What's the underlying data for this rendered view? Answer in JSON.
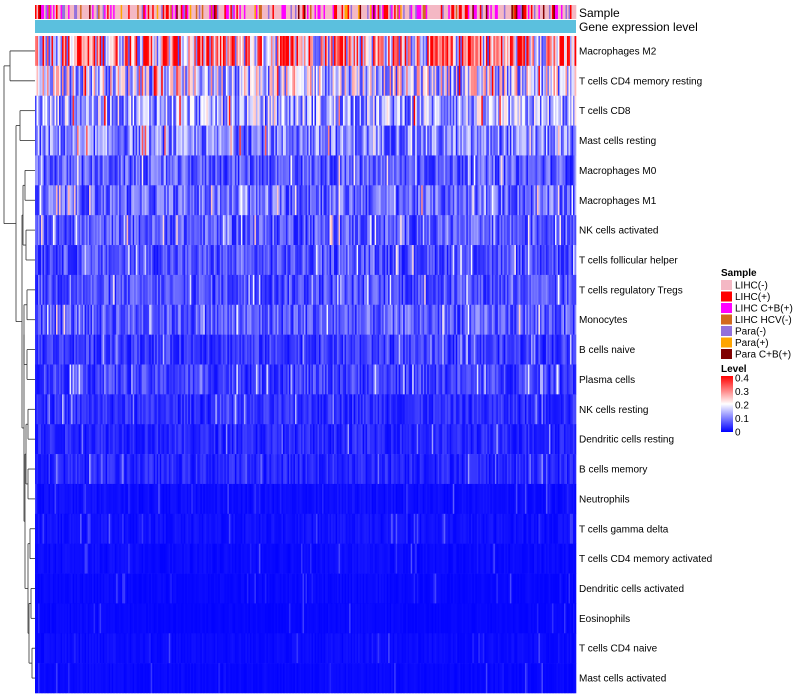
{
  "chart_data": {
    "type": "heatmap",
    "title": "",
    "annotation_labels": [
      "Sample",
      "Gene expression level"
    ],
    "rows": [
      {
        "name": "Macrophages M2",
        "mean": 0.26
      },
      {
        "name": "T cells CD4 memory resting",
        "mean": 0.17
      },
      {
        "name": "T cells CD8",
        "mean": 0.13
      },
      {
        "name": "Mast cells resting",
        "mean": 0.1
      },
      {
        "name": "Macrophages M0",
        "mean": 0.07
      },
      {
        "name": "Macrophages M1",
        "mean": 0.08
      },
      {
        "name": "NK cells activated",
        "mean": 0.07
      },
      {
        "name": "T cells follicular helper",
        "mean": 0.06
      },
      {
        "name": "T cells regulatory  Tregs",
        "mean": 0.06
      },
      {
        "name": "Monocytes",
        "mean": 0.07
      },
      {
        "name": "B cells naive",
        "mean": 0.045
      },
      {
        "name": "Plasma cells",
        "mean": 0.05
      },
      {
        "name": "NK cells resting",
        "mean": 0.035
      },
      {
        "name": "Dendritic cells resting",
        "mean": 0.03
      },
      {
        "name": "B cells memory",
        "mean": 0.03
      },
      {
        "name": "Neutrophils",
        "mean": 0.01
      },
      {
        "name": "T cells gamma delta",
        "mean": 0.012
      },
      {
        "name": "T cells CD4 memory activated",
        "mean": 0.008
      },
      {
        "name": "Dendritic cells activated",
        "mean": 0.006
      },
      {
        "name": "Eosinophils",
        "mean": 0.005
      },
      {
        "name": "T cells CD4 naive",
        "mean": 0.008
      },
      {
        "name": "Mast cells activated",
        "mean": 0.006
      }
    ],
    "sample_legend": {
      "title": "Sample",
      "entries": [
        {
          "label": "LIHC(-)",
          "color": "#f4b8c4"
        },
        {
          "label": "LIHC(+)",
          "color": "#ff0000"
        },
        {
          "label": "LIHC C+B(+)",
          "color": "#ff00ff"
        },
        {
          "label": "LIHC HCV(-)",
          "color": "#d2691e"
        },
        {
          "label": "Para(-)",
          "color": "#9370db"
        },
        {
          "label": "Para(+)",
          "color": "#ffa500"
        },
        {
          "label": "Para C+B(+)",
          "color": "#800000"
        }
      ]
    },
    "level_legend": {
      "title": "Level",
      "ticks": [
        "0.4",
        "0.3",
        "0.2",
        "0.1",
        "0"
      ],
      "range": [
        0,
        0.4
      ],
      "colors": [
        "#0000ff",
        "#ffffff",
        "#ff0000"
      ]
    },
    "expression_bar_color": "#5bc0de"
  }
}
